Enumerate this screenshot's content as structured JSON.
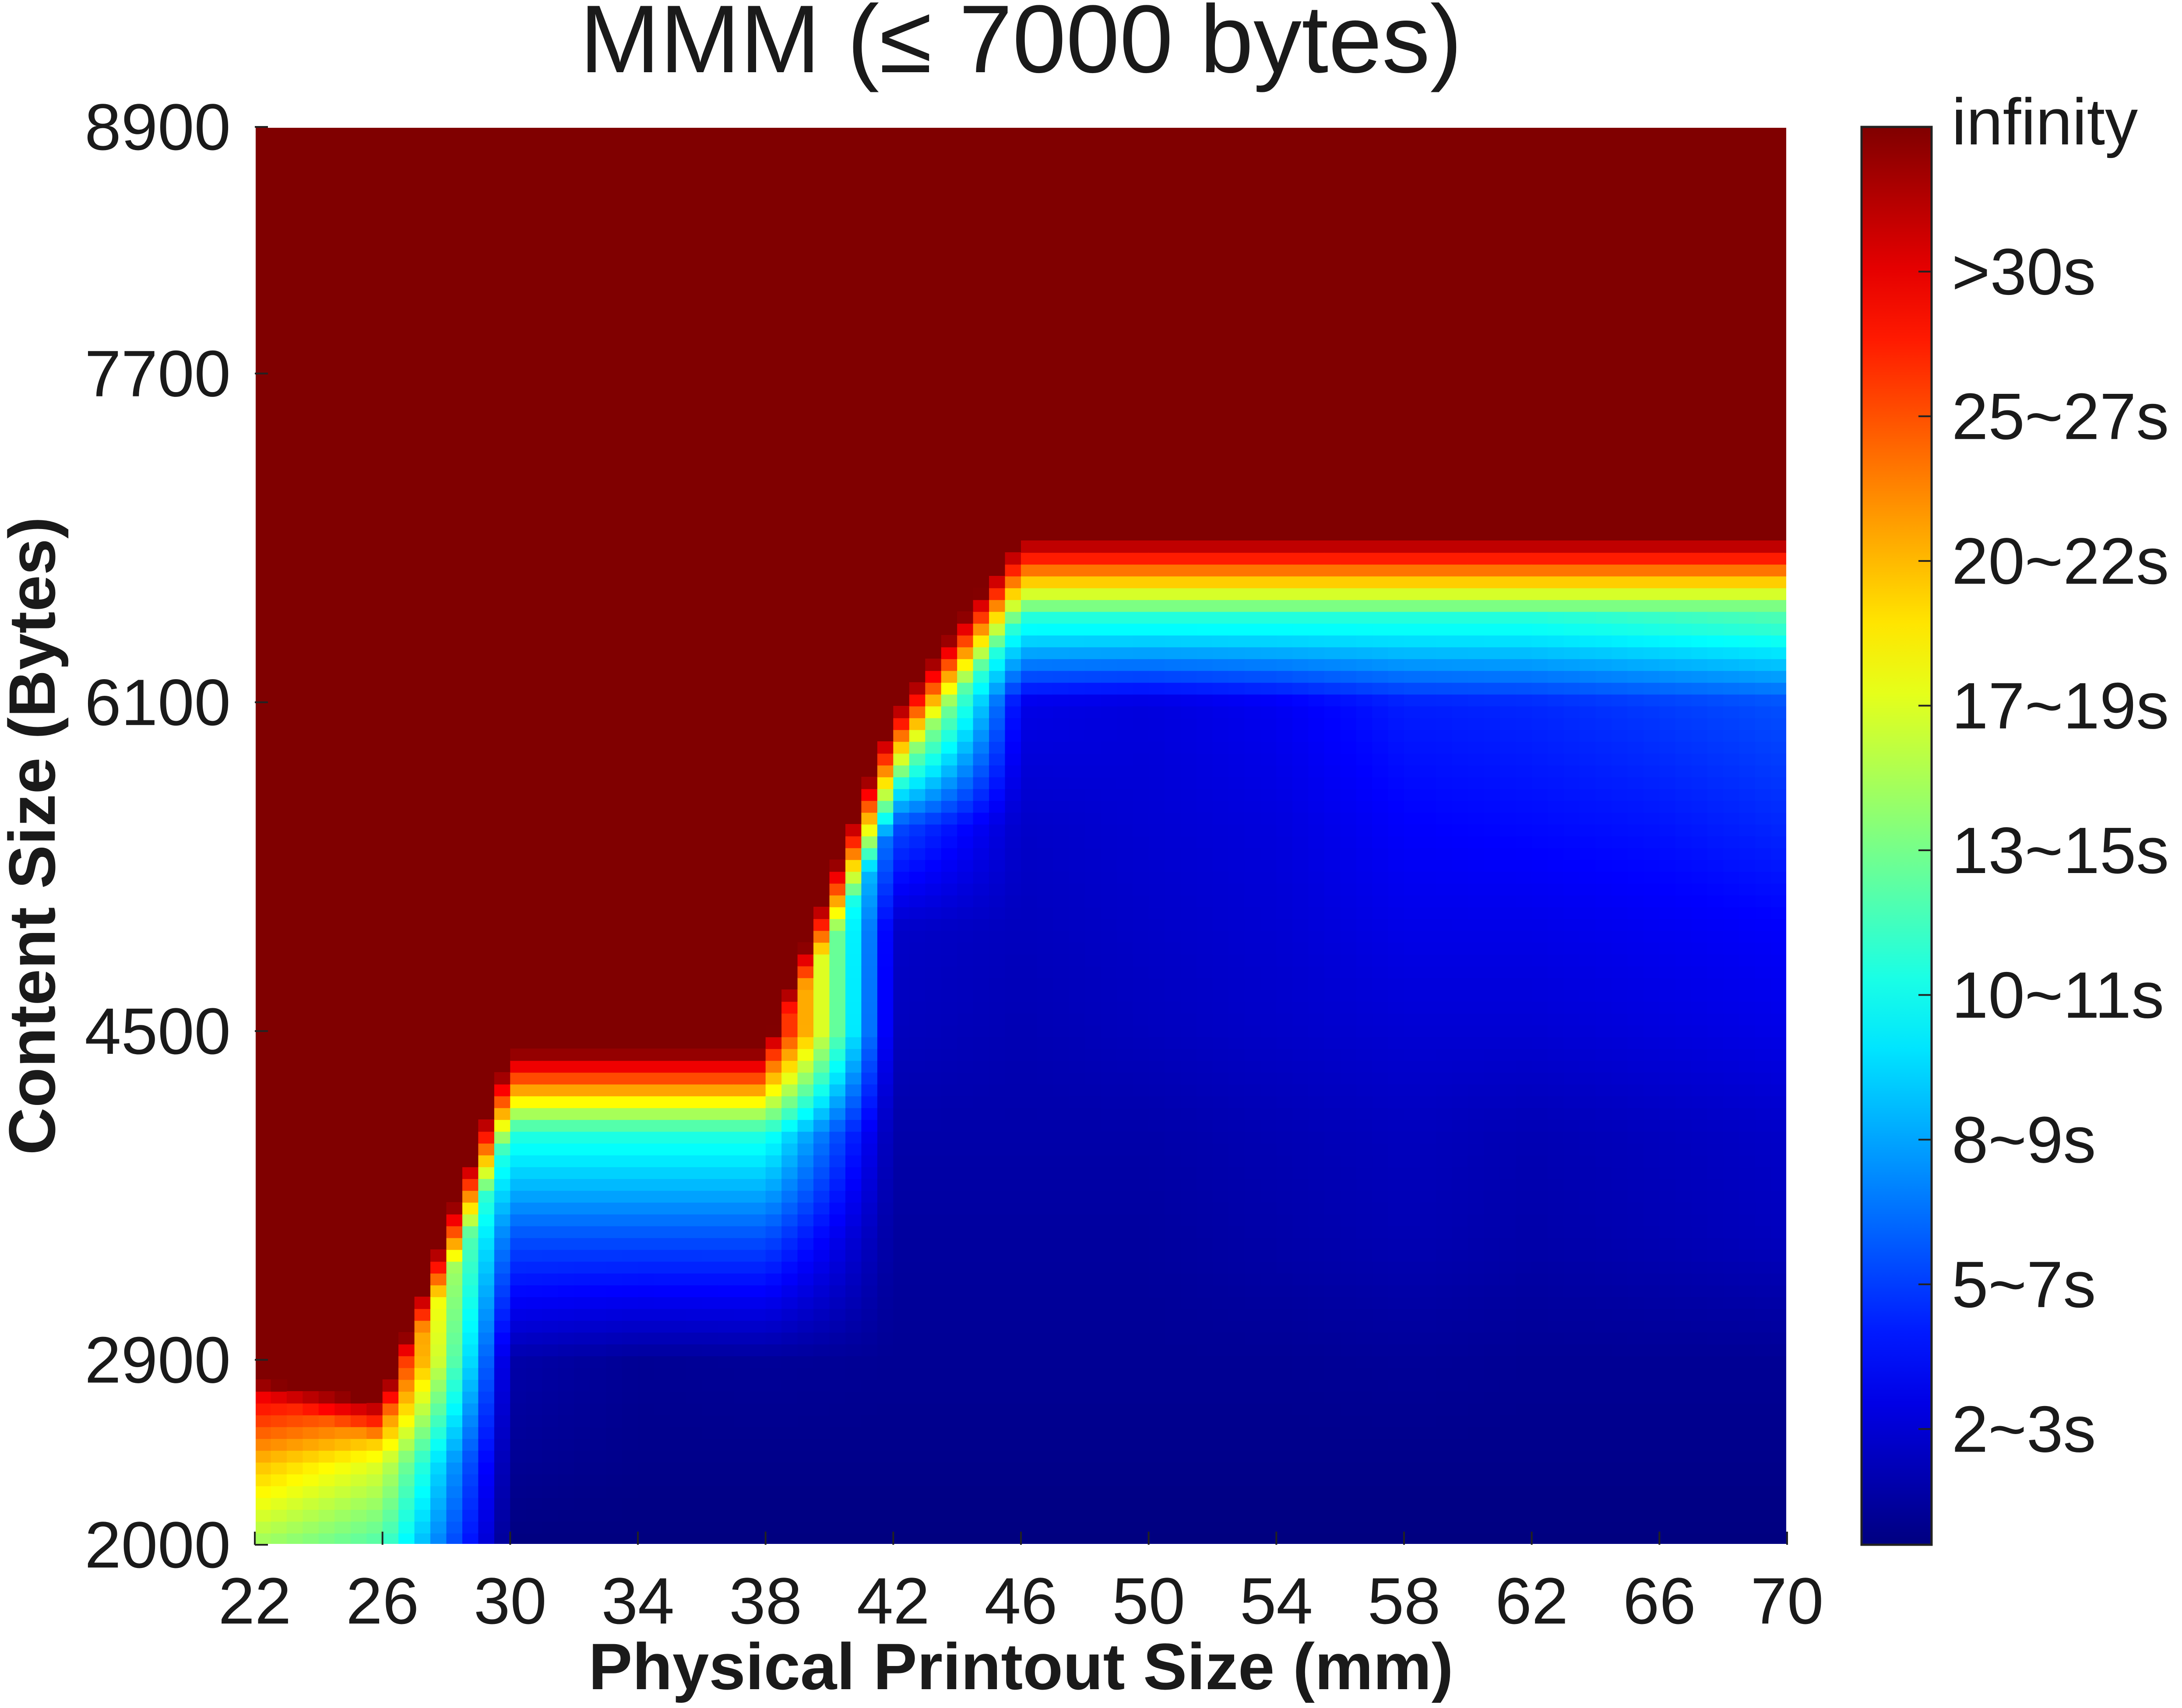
{
  "chart_data": {
    "type": "heatmap",
    "title": "MMM (≤ 7000 bytes)",
    "xlabel": "Physical Printout Size (mm)",
    "ylabel": "Content Size (Bytes)",
    "xlim": [
      22,
      70
    ],
    "ylim": [
      2000,
      8900
    ],
    "xticks": [
      22,
      26,
      30,
      34,
      38,
      42,
      46,
      50,
      54,
      58,
      62,
      66,
      70
    ],
    "yticks": [
      2000,
      2900,
      4500,
      6100,
      7700,
      8900
    ],
    "x": [
      22,
      26,
      30,
      34,
      38,
      42,
      46,
      50,
      54,
      58,
      62,
      66,
      70
    ],
    "colorbar": {
      "colormap": "jet",
      "range": [
        0,
        49
      ],
      "tick_positions": [
        4,
        9,
        14,
        19,
        24,
        29,
        34,
        39,
        44
      ],
      "tick_labels": [
        "2~3s",
        "5~7s",
        "8~9s",
        "10~11s",
        "13~15s",
        "17~19s",
        "20~22s",
        "25~27s",
        ">30s"
      ],
      "top_label": "infinity"
    },
    "failure_boundary": [
      2800,
      2700,
      4400,
      4400,
      4400,
      6040,
      6900,
      6900,
      6900,
      6900,
      6900,
      6900,
      6900
    ],
    "capacity_surface": {
      "description_values_in_colorbar_units": "level by x (columns) and content size",
      "sizes": [
        2000,
        2400,
        2900,
        3500,
        4000,
        4500,
        5000,
        5500,
        6100,
        6500
      ],
      "rows": [
        [
          26,
          22,
          0,
          0,
          0,
          0,
          0,
          0,
          0,
          0,
          0,
          0,
          0
        ],
        [
          34,
          29,
          1,
          0.5,
          0.5,
          0.5,
          0.5,
          0.5,
          0.5,
          0.5,
          0.5,
          0.5,
          0.5
        ],
        [
          49,
          49,
          2,
          1,
          1.2,
          1,
          1,
          1,
          1,
          1.2,
          1,
          1,
          1
        ],
        [
          49,
          49,
          10,
          10,
          10,
          1.5,
          1.5,
          1.5,
          2,
          2.5,
          2,
          2.5,
          3
        ],
        [
          49,
          49,
          20,
          20,
          20,
          2,
          2,
          2,
          2.5,
          3,
          2.5,
          3,
          3.5
        ],
        [
          49,
          49,
          49,
          49,
          49,
          3,
          2.5,
          3,
          3.5,
          4,
          4,
          4.5,
          5
        ],
        [
          49,
          49,
          49,
          49,
          49,
          3.5,
          3,
          3.5,
          4,
          5,
          5,
          5.5,
          6
        ],
        [
          49,
          49,
          49,
          49,
          49,
          10,
          3.5,
          4,
          4.5,
          6,
          6.5,
          7,
          8
        ],
        [
          49,
          49,
          49,
          49,
          49,
          40,
          5,
          4.5,
          5.5,
          7.5,
          8,
          9,
          10
        ],
        [
          49,
          49,
          49,
          49,
          49,
          49,
          20,
          20,
          20,
          20,
          20,
          21,
          22
        ]
      ]
    }
  }
}
